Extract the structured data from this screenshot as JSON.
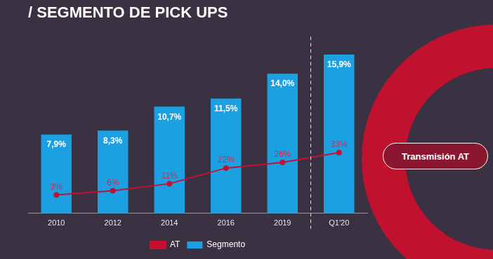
{
  "chart_data": {
    "type": "bar",
    "title": "/ SEGMENTO DE PICK UPS",
    "categories": [
      "2010",
      "2012",
      "2014",
      "2016",
      "2019",
      "Q1'20"
    ],
    "series": [
      {
        "name": "Segmento",
        "type": "bar",
        "color": "#1ba1e2",
        "values": [
          7.9,
          8.3,
          10.7,
          11.5,
          14.0,
          15.9
        ],
        "value_labels": [
          "7,9%",
          "8,3%",
          "10,7%",
          "11,5%",
          "14,0%",
          "15,9%"
        ]
      },
      {
        "name": "AT",
        "type": "line",
        "axis": "y2",
        "color": "#c8102e",
        "marker": "circle",
        "line_style": "solid",
        "values": [
          3,
          6,
          11,
          22,
          26,
          33
        ],
        "value_labels": [
          "3%",
          "6%",
          "11%",
          "22%",
          "26%",
          "33%"
        ]
      }
    ],
    "ylim": [
      0,
      17
    ],
    "y2lim": [
      -10,
      110
    ],
    "grid": false,
    "legend": "bottom",
    "data_labels": true,
    "tick_labels": "x",
    "annotation": "Transmisión AT"
  }
}
